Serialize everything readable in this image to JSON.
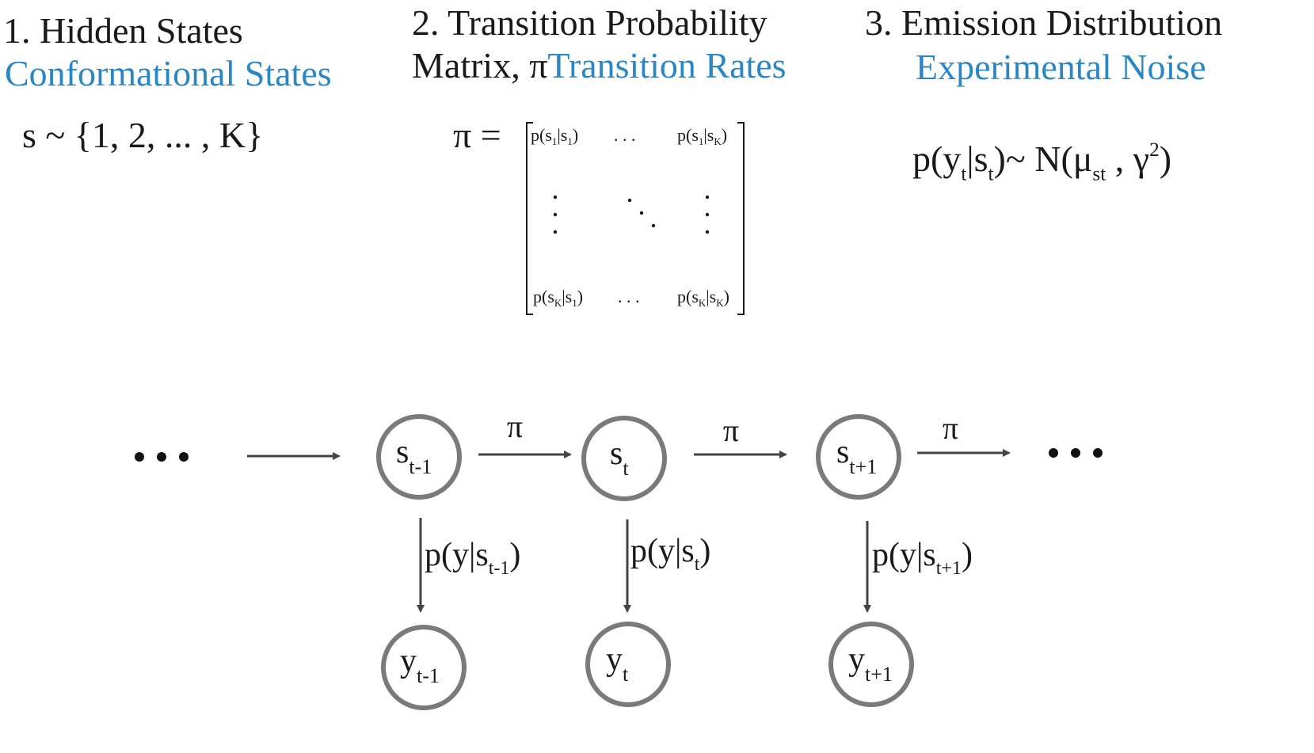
{
  "sections": {
    "hidden_states": {
      "title": "1. Hidden States",
      "subtitle": "Conformational States",
      "eq_main": "s ~ {1, 2, ... , K}"
    },
    "transition": {
      "title_line1": "2. Transition Probability",
      "title_line2_prefix": "Matrix, π",
      "subtitle": "Transition Rates",
      "eq_lhs": "π =",
      "matrix": {
        "top_left": [
          "p(s",
          "1",
          "|s",
          "1",
          ")"
        ],
        "top_right": [
          "p(s",
          "1",
          "|s",
          "K",
          ")"
        ],
        "bottom_left": [
          "p(s",
          "K",
          "|s",
          "1",
          ")"
        ],
        "bottom_right": [
          "p(s",
          "K",
          "|s",
          "K",
          ")"
        ],
        "hdots": ". . ."
      }
    },
    "emission": {
      "title": "3. Emission Distribution",
      "subtitle": "Experimental Noise",
      "eq": {
        "p": "p(y",
        "t1": "t",
        "mid": "|s",
        "t2": "t",
        "rhs": ")~ N(μ",
        "sub_st": "st",
        "comma": " , γ",
        "sup2": "2",
        "close": ")"
      }
    }
  },
  "chain": {
    "ellipsis": "• • •",
    "transition_label": "π",
    "hidden_nodes": [
      {
        "base": "s",
        "sub": "t-1"
      },
      {
        "base": "s",
        "sub": "t"
      },
      {
        "base": "s",
        "sub": "t+1"
      }
    ],
    "observed_nodes": [
      {
        "base": "y",
        "sub": "t-1"
      },
      {
        "base": "y",
        "sub": "t"
      },
      {
        "base": "y",
        "sub": "t+1"
      }
    ],
    "emission_labels": [
      {
        "prefix": "p(y|s",
        "sub": "t-1",
        "suffix": ")"
      },
      {
        "prefix": "p(y|s",
        "sub": "t",
        "suffix": ")"
      },
      {
        "prefix": "p(y|s",
        "sub": "t+1",
        "suffix": ")"
      }
    ]
  },
  "colors": {
    "accent_blue": "#2b86c4",
    "node_stroke": "#7a7a7a",
    "arrow": "#444444",
    "text": "#1a1a1a"
  }
}
